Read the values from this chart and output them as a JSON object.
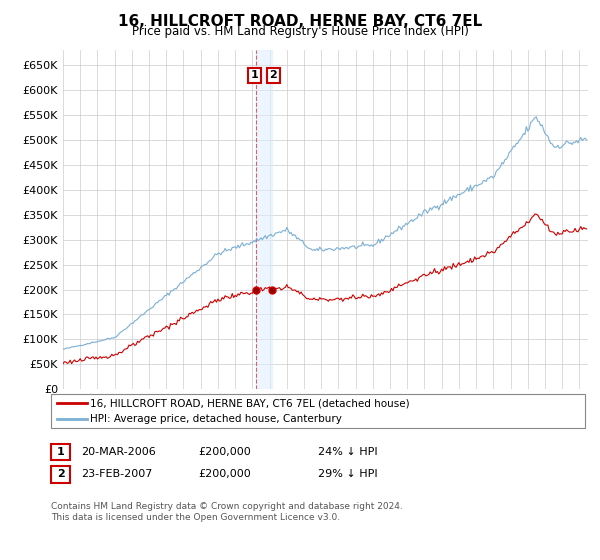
{
  "title": "16, HILLCROFT ROAD, HERNE BAY, CT6 7EL",
  "subtitle": "Price paid vs. HM Land Registry's House Price Index (HPI)",
  "legend_line1": "16, HILLCROFT ROAD, HERNE BAY, CT6 7EL (detached house)",
  "legend_line2": "HPI: Average price, detached house, Canterbury",
  "footnote": "Contains HM Land Registry data © Crown copyright and database right 2024.\nThis data is licensed under the Open Government Licence v3.0.",
  "transaction1_date": "20-MAR-2006",
  "transaction1_price": "£200,000",
  "transaction1_hpi": "24% ↓ HPI",
  "transaction2_date": "23-FEB-2007",
  "transaction2_price": "£200,000",
  "transaction2_hpi": "29% ↓ HPI",
  "hpi_color": "#7bafd4",
  "price_color": "#cc0000",
  "background_color": "#ffffff",
  "grid_color": "#cccccc",
  "ylim_top": 680000,
  "yticks": [
    0,
    50000,
    100000,
    150000,
    200000,
    250000,
    300000,
    350000,
    400000,
    450000,
    500000,
    550000,
    600000,
    650000
  ],
  "transaction1_x": 2006.21,
  "transaction2_x": 2007.12,
  "xmin": 1995.0,
  "xmax": 2025.5
}
